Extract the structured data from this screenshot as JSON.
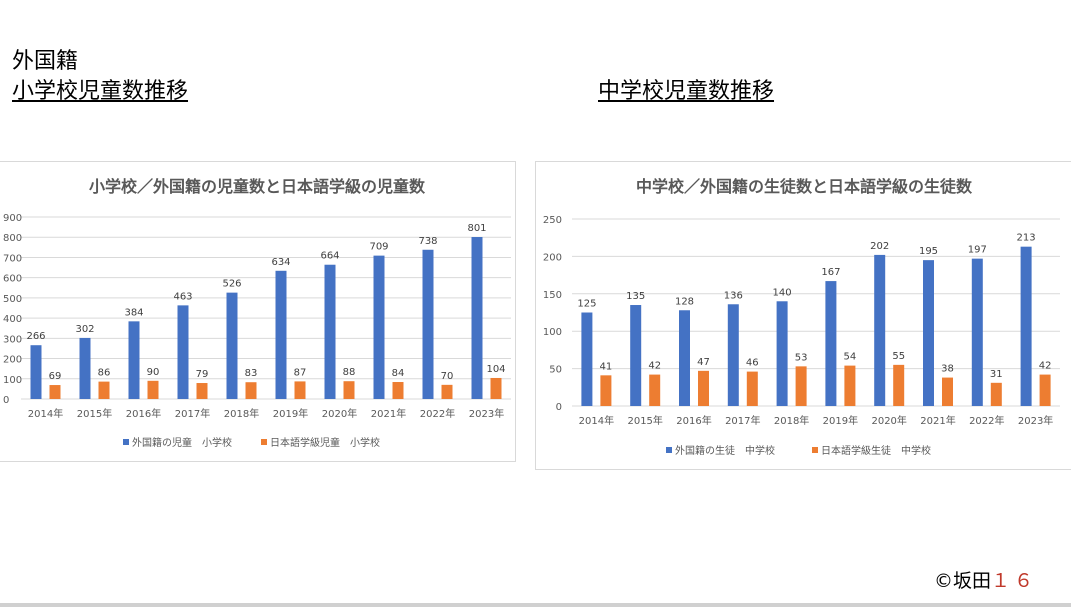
{
  "header": {
    "label": "外国籍",
    "title_left": "小学校児童数推移",
    "title_right": "中学校児童数推移"
  },
  "footer": {
    "copyright": "©坂田",
    "page_number": "１６"
  },
  "colors": {
    "series1": "#4472c4",
    "series2": "#ed7d31",
    "grid": "#d9d9d9",
    "text": "#595959"
  },
  "chart_data": [
    {
      "type": "bar",
      "title": "小学校／外国籍の児童数と日本語学級の児童数",
      "categories": [
        "2014年",
        "2015年",
        "2016年",
        "2017年",
        "2018年",
        "2019年",
        "2020年",
        "2021年",
        "2022年",
        "2023年"
      ],
      "series": [
        {
          "name": "外国籍の児童　小学校",
          "values": [
            266,
            302,
            384,
            463,
            526,
            634,
            664,
            709,
            738,
            801
          ]
        },
        {
          "name": "日本語学級児童　小学校",
          "values": [
            69,
            86,
            90,
            79,
            83,
            87,
            88,
            84,
            70,
            104
          ]
        }
      ],
      "ylim": [
        0,
        900
      ],
      "yticks": [
        0,
        100,
        200,
        300,
        400,
        500,
        600,
        700,
        800,
        900
      ],
      "grid": true,
      "legend": "bottom"
    },
    {
      "type": "bar",
      "title": "中学校／外国籍の生徒数と日本語学級の生徒数",
      "categories": [
        "2014年",
        "2015年",
        "2016年",
        "2017年",
        "2018年",
        "2019年",
        "2020年",
        "2021年",
        "2022年",
        "2023年"
      ],
      "series": [
        {
          "name": "外国籍の生徒　中学校",
          "values": [
            125,
            135,
            128,
            136,
            140,
            167,
            202,
            195,
            197,
            213
          ]
        },
        {
          "name": "日本語学級生徒　中学校",
          "values": [
            41,
            42,
            47,
            46,
            53,
            54,
            55,
            38,
            31,
            42
          ]
        }
      ],
      "ylim": [
        0,
        250
      ],
      "yticks": [
        0,
        50,
        100,
        150,
        200,
        250
      ],
      "grid": true,
      "legend": "bottom"
    }
  ]
}
